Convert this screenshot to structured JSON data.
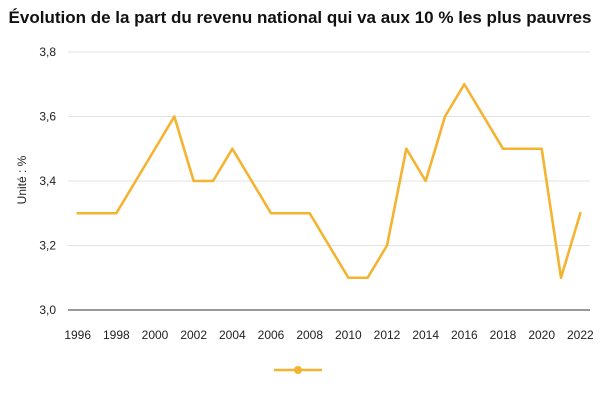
{
  "chart_data": {
    "type": "line",
    "title": "Évolution de la part du revenu national qui va aux 10 % les plus pauvres",
    "xlabel": "",
    "ylabel": "Unité : %",
    "ylim": [
      3.0,
      3.8
    ],
    "yticks": [
      "3,0",
      "3,2",
      "3,4",
      "3,6",
      "3,8"
    ],
    "xticks": [
      "1996",
      "1998",
      "2000",
      "2002",
      "2004",
      "2006",
      "2008",
      "2010",
      "2012",
      "2014",
      "2016",
      "2018",
      "2020",
      "2022"
    ],
    "grid": true,
    "legend": "bottom",
    "color": "#F4B330",
    "series": [
      {
        "x": [
          1996,
          1997,
          1998,
          1999,
          2000,
          2001,
          2002,
          2003,
          2004,
          2005,
          2006,
          2007,
          2008,
          2009,
          2010,
          2011,
          2012,
          2013,
          2014,
          2015,
          2016,
          2017,
          2018,
          2019,
          2020,
          2021,
          2022
        ],
        "values": [
          3.3,
          3.3,
          3.3,
          3.4,
          3.5,
          3.6,
          3.4,
          3.4,
          3.5,
          3.4,
          3.3,
          3.3,
          3.3,
          3.2,
          3.1,
          3.1,
          3.2,
          3.5,
          3.4,
          3.6,
          3.7,
          3.6,
          3.5,
          3.5,
          3.5,
          3.1,
          3.3
        ]
      }
    ]
  }
}
